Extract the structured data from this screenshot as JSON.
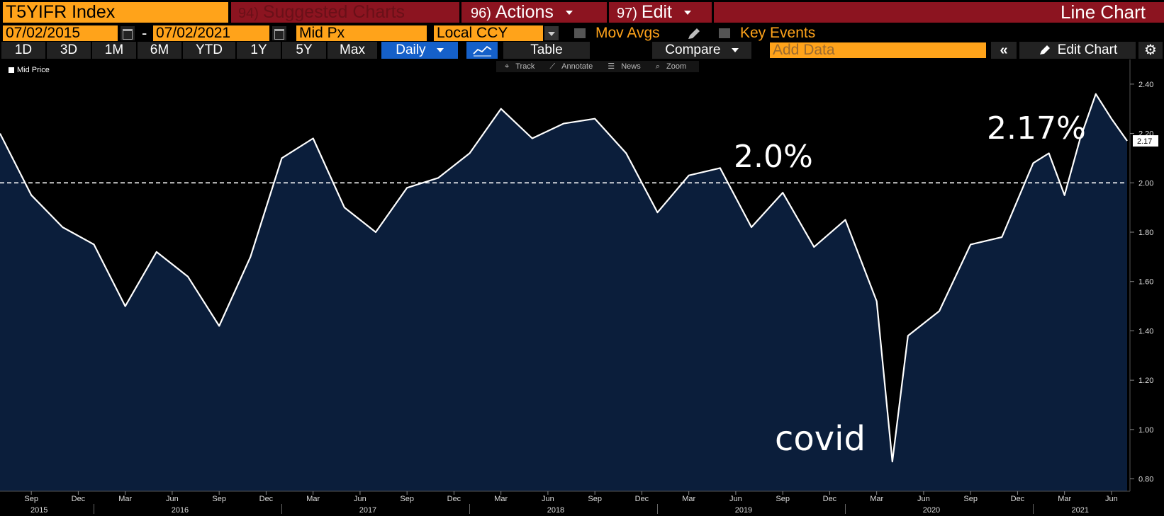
{
  "header": {
    "ticker": "T5YIFR Index",
    "suggested": {
      "num": "94)",
      "label": "Suggested Charts"
    },
    "actions": {
      "num": "96)",
      "label": "Actions"
    },
    "edit": {
      "num": "97)",
      "label": "Edit"
    },
    "chart_type": "Line Chart"
  },
  "controls": {
    "start_date": "07/02/2015",
    "end_date": "07/02/2021",
    "date_sep": "-",
    "field": "Mid Px",
    "currency": "Local CCY",
    "mov_avgs": "Mov Avgs",
    "key_events": "Key Events"
  },
  "toolbar": {
    "ranges": [
      "1D",
      "3D",
      "1M",
      "6M",
      "YTD",
      "1Y",
      "5Y",
      "Max"
    ],
    "period": "Daily",
    "table": "Table",
    "compare": "Compare",
    "add_data_placeholder": "Add Data",
    "edit_chart": "Edit Chart"
  },
  "chart_tools": [
    "Track",
    "Annotate",
    "News",
    "Zoom"
  ],
  "colors": {
    "accent": "#ffa31a",
    "header_red": "#8c1420",
    "selected": "#1560c9",
    "area": "#0b1e3b"
  },
  "chart_data": {
    "type": "area",
    "series": [
      {
        "name": "Mid Price"
      }
    ],
    "x": [
      "2015-07",
      "2015-09",
      "2015-11",
      "2016-01",
      "2016-03",
      "2016-05",
      "2016-07",
      "2016-09",
      "2016-11",
      "2017-01",
      "2017-03",
      "2017-05",
      "2017-07",
      "2017-09",
      "2017-11",
      "2018-01",
      "2018-03",
      "2018-05",
      "2018-07",
      "2018-09",
      "2018-11",
      "2019-01",
      "2019-03",
      "2019-05",
      "2019-07",
      "2019-09",
      "2019-11",
      "2020-01",
      "2020-03",
      "2020-04",
      "2020-05",
      "2020-07",
      "2020-09",
      "2020-11",
      "2021-01",
      "2021-02",
      "2021-03",
      "2021-04",
      "2021-05",
      "2021-06",
      "2021-07"
    ],
    "values": [
      2.2,
      1.95,
      1.82,
      1.75,
      1.5,
      1.72,
      1.62,
      1.42,
      1.7,
      2.1,
      2.18,
      1.9,
      1.8,
      1.98,
      2.02,
      2.12,
      2.3,
      2.18,
      2.24,
      2.26,
      2.12,
      1.88,
      2.03,
      2.06,
      1.82,
      1.96,
      1.74,
      1.85,
      1.52,
      0.87,
      1.38,
      1.48,
      1.75,
      1.78,
      2.08,
      2.12,
      1.95,
      2.18,
      2.36,
      2.26,
      2.17
    ],
    "reference_line": 2.0,
    "ylim": [
      0.75,
      2.5
    ],
    "yticks": [
      "0.80",
      "1.00",
      "1.20",
      "1.40",
      "1.60",
      "1.80",
      "2.00",
      "2.20",
      "2.40"
    ],
    "last_value_label": "2.17",
    "month_labels": [
      "Sep",
      "Dec",
      "Mar",
      "Jun",
      "Sep",
      "Dec",
      "Mar",
      "Jun",
      "Sep",
      "Dec",
      "Mar",
      "Jun",
      "Sep",
      "Dec",
      "Mar",
      "Jun",
      "Sep",
      "Dec",
      "Mar",
      "Jun",
      "Sep",
      "Dec",
      "Mar",
      "Jun"
    ],
    "year_labels": [
      "2015",
      "2016",
      "2017",
      "2018",
      "2019",
      "2020",
      "2021"
    ],
    "annotations": {
      "ref": "2.0%",
      "latest": "2.17%",
      "dip": "covid"
    }
  }
}
